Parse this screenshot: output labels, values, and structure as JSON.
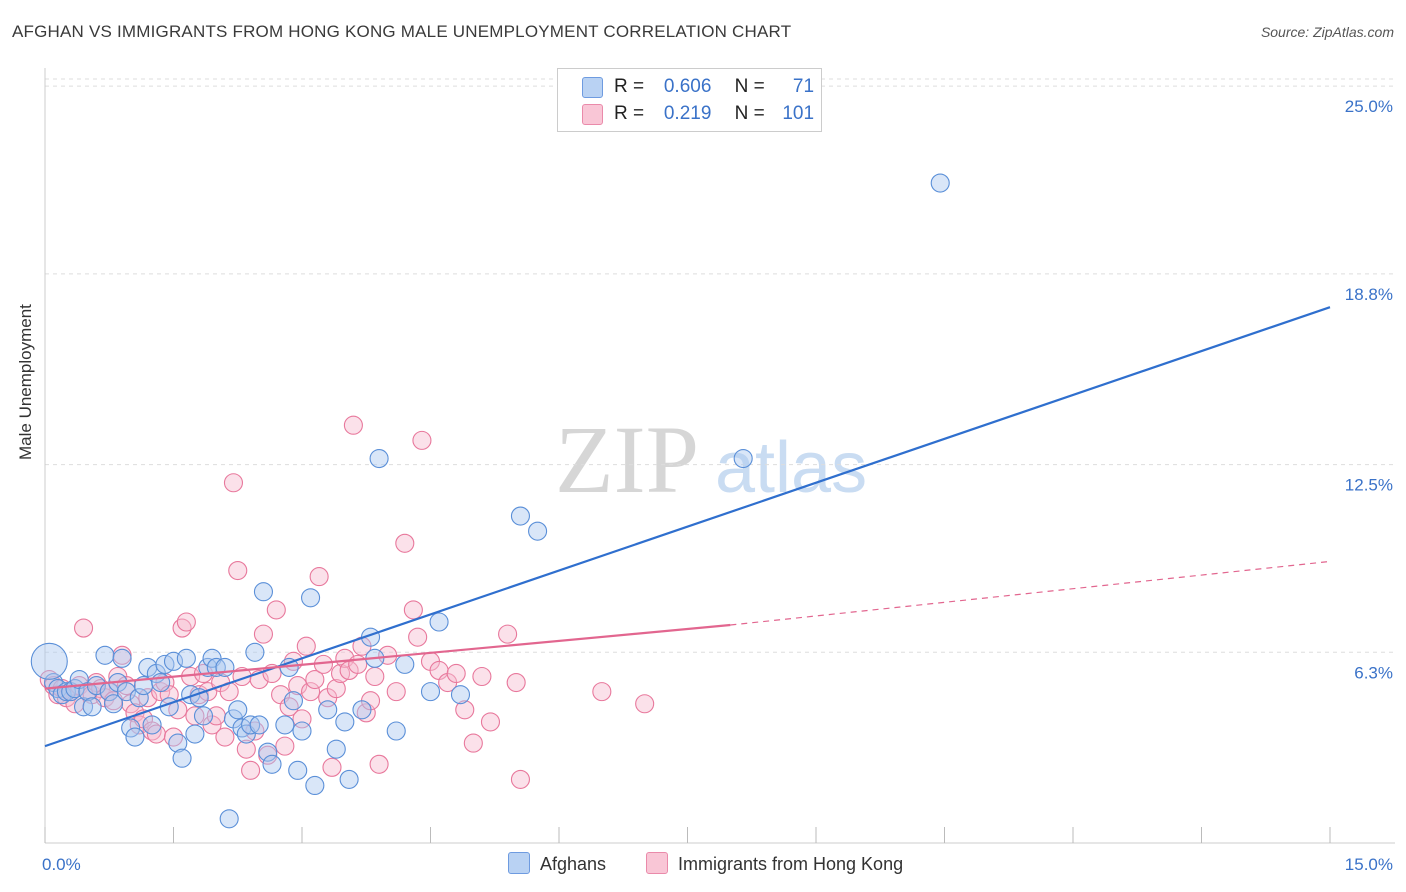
{
  "title": "AFGHAN VS IMMIGRANTS FROM HONG KONG MALE UNEMPLOYMENT CORRELATION CHART",
  "source": "Source: ZipAtlas.com",
  "watermark": {
    "zip": "ZIP",
    "atlas": "atlas"
  },
  "legend": {
    "r_label": "R =",
    "n_label": "N =",
    "series": [
      {
        "name": "Afghans",
        "r": "0.606",
        "n": "71",
        "fill": "#aac8f0",
        "stroke": "#5a8fd8"
      },
      {
        "name": "Immigrants from Hong Kong",
        "r": "0.219",
        "n": "101",
        "fill": "#f7bcd0",
        "stroke": "#e8789c"
      }
    ]
  },
  "chart_data": {
    "type": "scatter",
    "title": "AFGHAN VS IMMIGRANTS FROM HONG KONG MALE UNEMPLOYMENT CORRELATION CHART",
    "xlabel": "",
    "ylabel": "Male Unemployment",
    "xlim": [
      0,
      15
    ],
    "ylim": [
      0,
      25.6
    ],
    "x_tick_labels": [
      "0.0%",
      "15.0%"
    ],
    "y_tick_labels": [
      "25.0%",
      "18.8%",
      "12.5%",
      "6.3%"
    ],
    "y_tick_values": [
      25.0,
      18.8,
      12.5,
      6.3
    ],
    "series": [
      {
        "name": "Afghans",
        "color": "#5a8fd8",
        "trend": {
          "x": [
            0,
            15
          ],
          "y": [
            3.2,
            17.7
          ],
          "dashed_from": null
        },
        "points": [
          [
            0.1,
            5.3
          ],
          [
            0.15,
            5.1
          ],
          [
            0.2,
            4.9
          ],
          [
            0.25,
            5.0
          ],
          [
            0.3,
            5.0
          ],
          [
            0.35,
            5.1
          ],
          [
            0.4,
            5.4
          ],
          [
            0.45,
            4.5
          ],
          [
            0.5,
            5.0
          ],
          [
            0.55,
            4.5
          ],
          [
            0.6,
            5.2
          ],
          [
            0.7,
            6.2
          ],
          [
            0.75,
            5.0
          ],
          [
            0.8,
            4.6
          ],
          [
            0.85,
            5.3
          ],
          [
            0.9,
            6.1
          ],
          [
            0.95,
            5.0
          ],
          [
            1.0,
            3.8
          ],
          [
            1.05,
            3.5
          ],
          [
            1.1,
            4.8
          ],
          [
            1.15,
            5.2
          ],
          [
            1.2,
            5.8
          ],
          [
            1.25,
            3.9
          ],
          [
            1.3,
            5.6
          ],
          [
            1.35,
            5.3
          ],
          [
            1.4,
            5.9
          ],
          [
            1.45,
            4.5
          ],
          [
            1.5,
            6.0
          ],
          [
            1.55,
            3.3
          ],
          [
            1.6,
            2.8
          ],
          [
            1.65,
            6.1
          ],
          [
            1.7,
            4.9
          ],
          [
            1.75,
            3.6
          ],
          [
            1.8,
            4.8
          ],
          [
            1.85,
            4.2
          ],
          [
            1.9,
            5.8
          ],
          [
            1.95,
            6.1
          ],
          [
            2.0,
            5.8
          ],
          [
            2.1,
            5.8
          ],
          [
            2.15,
            0.8
          ],
          [
            2.2,
            4.1
          ],
          [
            2.25,
            4.4
          ],
          [
            2.3,
            3.8
          ],
          [
            2.35,
            3.6
          ],
          [
            2.4,
            3.9
          ],
          [
            2.45,
            6.3
          ],
          [
            2.5,
            3.9
          ],
          [
            2.55,
            8.3
          ],
          [
            2.6,
            3.0
          ],
          [
            2.65,
            2.6
          ],
          [
            2.8,
            3.9
          ],
          [
            2.85,
            5.8
          ],
          [
            2.9,
            4.7
          ],
          [
            2.95,
            2.4
          ],
          [
            3.0,
            3.7
          ],
          [
            3.1,
            8.1
          ],
          [
            3.15,
            1.9
          ],
          [
            3.3,
            4.4
          ],
          [
            3.4,
            3.1
          ],
          [
            3.5,
            4.0
          ],
          [
            3.55,
            2.1
          ],
          [
            3.7,
            4.4
          ],
          [
            3.8,
            6.8
          ],
          [
            3.85,
            6.1
          ],
          [
            3.9,
            12.7
          ],
          [
            4.1,
            3.7
          ],
          [
            4.2,
            5.9
          ],
          [
            4.5,
            5.0
          ],
          [
            4.6,
            7.3
          ],
          [
            4.85,
            4.9
          ],
          [
            5.55,
            10.8
          ],
          [
            5.75,
            10.3
          ],
          [
            8.15,
            12.7
          ],
          [
            10.45,
            21.8
          ]
        ]
      },
      {
        "name": "Immigrants from Hong Kong",
        "color": "#e8789c",
        "trend": {
          "x": [
            0,
            8.0,
            15
          ],
          "y": [
            5.1,
            7.2,
            9.3
          ],
          "dashed_from": 8.0
        },
        "points": [
          [
            0.05,
            5.4
          ],
          [
            0.1,
            5.2
          ],
          [
            0.15,
            4.9
          ],
          [
            0.2,
            5.1
          ],
          [
            0.25,
            4.8
          ],
          [
            0.3,
            5.0
          ],
          [
            0.35,
            4.6
          ],
          [
            0.4,
            5.2
          ],
          [
            0.45,
            7.1
          ],
          [
            0.5,
            5.0
          ],
          [
            0.55,
            4.9
          ],
          [
            0.6,
            5.3
          ],
          [
            0.65,
            5.1
          ],
          [
            0.7,
            4.8
          ],
          [
            0.75,
            5.0
          ],
          [
            0.8,
            4.7
          ],
          [
            0.85,
            5.5
          ],
          [
            0.9,
            6.2
          ],
          [
            0.95,
            5.2
          ],
          [
            1.0,
            4.6
          ],
          [
            1.05,
            4.3
          ],
          [
            1.1,
            3.9
          ],
          [
            1.15,
            4.1
          ],
          [
            1.2,
            4.8
          ],
          [
            1.25,
            3.7
          ],
          [
            1.3,
            3.6
          ],
          [
            1.35,
            5.0
          ],
          [
            1.4,
            5.3
          ],
          [
            1.45,
            4.9
          ],
          [
            1.5,
            3.5
          ],
          [
            1.55,
            4.4
          ],
          [
            1.6,
            7.1
          ],
          [
            1.65,
            7.3
          ],
          [
            1.7,
            5.5
          ],
          [
            1.75,
            4.2
          ],
          [
            1.8,
            4.9
          ],
          [
            1.85,
            5.6
          ],
          [
            1.9,
            5.0
          ],
          [
            1.95,
            3.9
          ],
          [
            2.0,
            4.2
          ],
          [
            2.05,
            5.3
          ],
          [
            2.1,
            3.5
          ],
          [
            2.15,
            5.0
          ],
          [
            2.2,
            11.9
          ],
          [
            2.25,
            9.0
          ],
          [
            2.3,
            5.5
          ],
          [
            2.35,
            3.1
          ],
          [
            2.4,
            2.4
          ],
          [
            2.45,
            3.7
          ],
          [
            2.5,
            5.4
          ],
          [
            2.55,
            6.9
          ],
          [
            2.6,
            2.9
          ],
          [
            2.65,
            5.6
          ],
          [
            2.7,
            7.7
          ],
          [
            2.75,
            4.9
          ],
          [
            2.8,
            3.2
          ],
          [
            2.85,
            4.5
          ],
          [
            2.9,
            6.0
          ],
          [
            2.95,
            5.2
          ],
          [
            3.0,
            4.1
          ],
          [
            3.05,
            6.5
          ],
          [
            3.1,
            5.0
          ],
          [
            3.15,
            5.4
          ],
          [
            3.2,
            8.8
          ],
          [
            3.25,
            5.9
          ],
          [
            3.3,
            4.8
          ],
          [
            3.35,
            2.5
          ],
          [
            3.4,
            5.1
          ],
          [
            3.45,
            5.6
          ],
          [
            3.5,
            6.1
          ],
          [
            3.55,
            5.7
          ],
          [
            3.6,
            13.8
          ],
          [
            3.65,
            5.9
          ],
          [
            3.7,
            6.5
          ],
          [
            3.75,
            4.3
          ],
          [
            3.8,
            4.7
          ],
          [
            3.85,
            5.5
          ],
          [
            3.9,
            2.6
          ],
          [
            4.0,
            6.2
          ],
          [
            4.1,
            5.0
          ],
          [
            4.2,
            9.9
          ],
          [
            4.3,
            7.7
          ],
          [
            4.35,
            6.8
          ],
          [
            4.4,
            13.3
          ],
          [
            4.5,
            6.0
          ],
          [
            4.6,
            5.7
          ],
          [
            4.7,
            5.3
          ],
          [
            4.8,
            5.6
          ],
          [
            4.9,
            4.4
          ],
          [
            5.0,
            3.3
          ],
          [
            5.1,
            5.5
          ],
          [
            5.2,
            4.0
          ],
          [
            5.4,
            6.9
          ],
          [
            5.5,
            5.3
          ],
          [
            5.55,
            2.1
          ],
          [
            6.5,
            5.0
          ],
          [
            7.0,
            4.6
          ]
        ]
      }
    ],
    "large_points": [
      {
        "series": "Afghans",
        "point": [
          0.05,
          6.0
        ]
      }
    ]
  }
}
